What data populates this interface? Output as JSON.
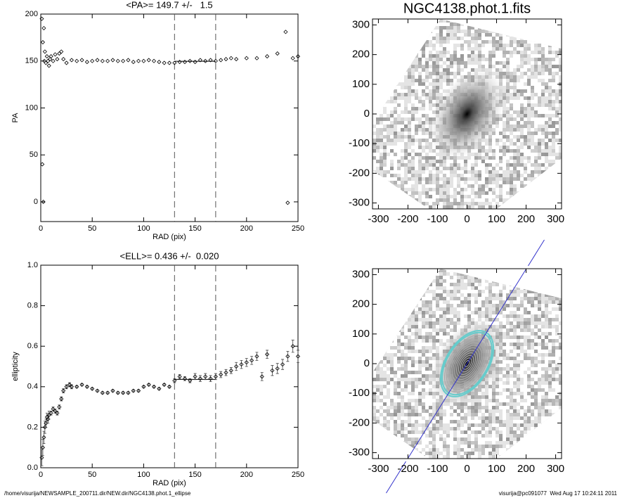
{
  "chart_data": [
    {
      "type": "scatter",
      "title": "<PA>= 149.7 +/-   1.5",
      "xlabel": "RAD (pix)",
      "ylabel": "PA",
      "xlim": [
        0,
        250
      ],
      "ylim": [
        -21,
        200
      ],
      "xticks": [
        0,
        50,
        100,
        150,
        200,
        250
      ],
      "yticks": [
        0,
        50,
        100,
        150,
        200
      ],
      "vlines": [
        130,
        170
      ],
      "hline": 149.7,
      "color": "#000000",
      "x": [
        1,
        1.5,
        2,
        2.5,
        3,
        3.5,
        4,
        5,
        6,
        7,
        8,
        9,
        10,
        12,
        14,
        16,
        18,
        20,
        22,
        25,
        30,
        35,
        40,
        45,
        50,
        55,
        60,
        65,
        70,
        75,
        80,
        85,
        90,
        95,
        100,
        105,
        110,
        115,
        120,
        125,
        130,
        135,
        140,
        145,
        150,
        155,
        160,
        165,
        170,
        175,
        180,
        185,
        190,
        200,
        210,
        220,
        230,
        238,
        240,
        245,
        250
      ],
      "values": [
        195,
        40,
        170,
        0,
        185,
        150,
        160,
        148,
        155,
        150,
        145,
        152,
        155,
        150,
        157,
        152,
        158,
        160,
        152,
        148,
        151,
        150,
        151,
        149,
        150,
        151,
        150,
        150,
        151,
        150,
        150,
        151,
        149,
        150,
        150,
        151,
        150,
        149,
        148,
        148,
        148,
        149,
        149,
        150,
        149,
        151,
        150,
        151,
        150,
        151,
        152,
        153,
        152,
        153,
        153,
        155,
        158,
        181,
        -1,
        153,
        155
      ]
    },
    {
      "type": "scatter",
      "title": "<ELL>= 0.436 +/-  0.020",
      "xlabel": "RAD (pix)",
      "ylabel": "ellipticity",
      "xlim": [
        0,
        250
      ],
      "ylim": [
        0,
        1
      ],
      "xticks": [
        0,
        50,
        100,
        150,
        200,
        250
      ],
      "yticks": [
        {
          "value": 0,
          "label": "0.0"
        },
        0.2,
        0.4,
        0.6,
        0.8,
        {
          "value": 1,
          "label": "1.0"
        }
      ],
      "vlines": [
        130,
        170
      ],
      "hline": 0.436,
      "color": "#000000",
      "x": [
        1,
        2,
        3,
        4,
        5,
        6,
        7,
        8,
        10,
        12,
        14,
        16,
        18,
        20,
        22,
        25,
        28,
        30,
        35,
        40,
        45,
        50,
        55,
        60,
        65,
        70,
        75,
        80,
        85,
        90,
        95,
        100,
        105,
        110,
        115,
        120,
        125,
        130,
        135,
        140,
        145,
        150,
        155,
        160,
        165,
        170,
        175,
        180,
        185,
        190,
        195,
        200,
        205,
        210,
        215,
        220,
        225,
        230,
        235,
        240,
        245,
        250
      ],
      "values": [
        0.05,
        0.1,
        0.15,
        0.2,
        0.22,
        0.25,
        0.24,
        0.26,
        0.27,
        0.29,
        0.28,
        0.27,
        0.3,
        0.34,
        0.38,
        0.4,
        0.41,
        0.4,
        0.4,
        0.41,
        0.4,
        0.39,
        0.38,
        0.37,
        0.37,
        0.38,
        0.37,
        0.37,
        0.37,
        0.38,
        0.38,
        0.4,
        0.41,
        0.4,
        0.39,
        0.41,
        0.4,
        0.43,
        0.45,
        0.44,
        0.43,
        0.45,
        0.44,
        0.45,
        0.44,
        0.45,
        0.46,
        0.47,
        0.48,
        0.5,
        0.51,
        0.52,
        0.53,
        0.55,
        0.45,
        0.56,
        0.48,
        0.49,
        0.51,
        0.55,
        0.6,
        0.55
      ],
      "errors": [
        0.04,
        0.04,
        0.03,
        0.03,
        0.02,
        0.02,
        0.02,
        0.02,
        0.01,
        0.01,
        0.01,
        0.01,
        0.01,
        0.01,
        0.01,
        0.01,
        0.01,
        0.01,
        0.005,
        0.005,
        0.005,
        0.005,
        0.005,
        0.005,
        0.005,
        0.005,
        0.005,
        0.005,
        0.005,
        0.005,
        0.005,
        0.005,
        0.005,
        0.005,
        0.005,
        0.005,
        0.005,
        0.01,
        0.01,
        0.01,
        0.01,
        0.015,
        0.015,
        0.015,
        0.015,
        0.015,
        0.015,
        0.015,
        0.015,
        0.02,
        0.02,
        0.02,
        0.02,
        0.02,
        0.02,
        0.02,
        0.025,
        0.025,
        0.025,
        0.025,
        0.03,
        0.03
      ]
    },
    {
      "type": "image",
      "title": "NGC4138.phot.1.fits",
      "xlim": [
        -320,
        320
      ],
      "ylim": [
        -320,
        320
      ],
      "xticks": [
        -300,
        -200,
        -100,
        0,
        100,
        200,
        300
      ],
      "yticks": [
        -300,
        -200,
        -100,
        0,
        100,
        200,
        300
      ]
    },
    {
      "type": "image",
      "contours": true,
      "xlim": [
        -320,
        320
      ],
      "ylim": [
        -320,
        320
      ],
      "xticks": [
        -300,
        -200,
        -100,
        0,
        100,
        200,
        300
      ],
      "yticks": [
        -300,
        -200,
        -100,
        0,
        100,
        200,
        300
      ]
    }
  ],
  "footer": {
    "left": "/home/visurija/NEWSAMPLE_200711.dir/NEW.dir/NGC4138.phot.1_ellipse",
    "right": "visurija@pc091077  Wed Aug 17 10:24:11 2011"
  }
}
